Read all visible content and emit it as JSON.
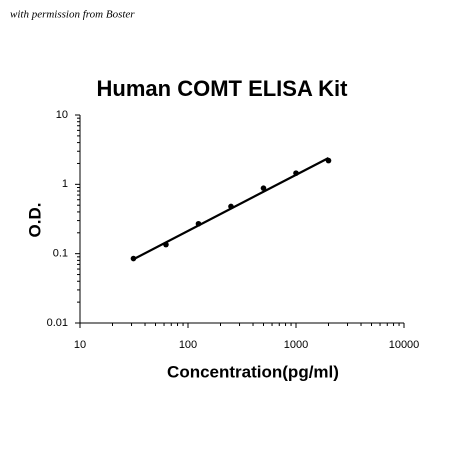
{
  "chart_data": {
    "type": "scatter",
    "title": "Human COMT ELISA Kit",
    "annotation": "with permission from Boster",
    "x_label": "Concentration(pg/ml)",
    "y_label": "O.D.",
    "x": [
      31.25,
      62.5,
      125,
      250,
      500,
      1000,
      2000
    ],
    "values": [
      0.085,
      0.135,
      0.27,
      0.48,
      0.88,
      1.45,
      2.2
    ],
    "color": "#000000",
    "fit_line": {
      "x": [
        31.25,
        2000
      ],
      "y": [
        0.083,
        2.4
      ]
    },
    "xlim": [
      10,
      10000
    ],
    "ylim": [
      0.01,
      10
    ],
    "xticks": [
      10,
      100,
      1000,
      10000
    ],
    "yticks": [
      0.01,
      0.1,
      1,
      10
    ],
    "log_x": true,
    "log_y": true,
    "minor_ticks": true,
    "grid": false
  }
}
